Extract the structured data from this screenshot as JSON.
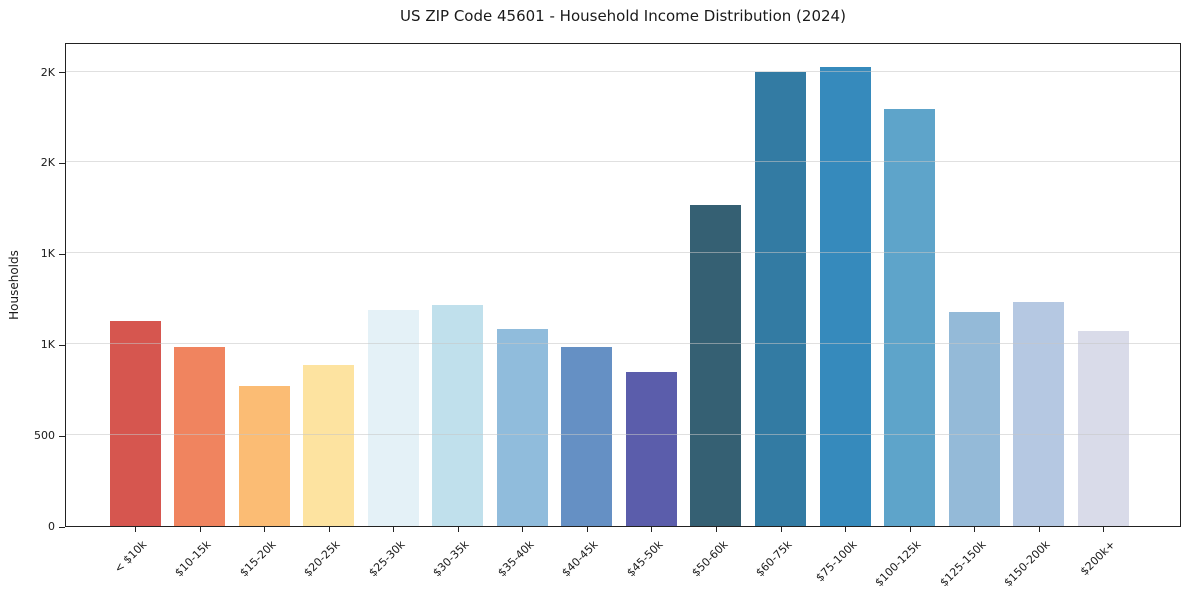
{
  "chart_data": {
    "type": "bar",
    "title": "US ZIP Code 45601 - Household Income Distribution (2024)",
    "xlabel": "",
    "ylabel": "Households",
    "categories": [
      "< $10k",
      "$10-15k",
      "$15-20k",
      "$20-25k",
      "$25-30k",
      "$30-35k",
      "$35-40k",
      "$40-45k",
      "$45-50k",
      "$50-60k",
      "$60-75k",
      "$75-100k",
      "$100-125k",
      "$125-150k",
      "$150-200k",
      "$200k+"
    ],
    "values": [
      1130,
      985,
      770,
      885,
      1190,
      1215,
      1085,
      985,
      850,
      1765,
      2500,
      2525,
      2295,
      1175,
      1230,
      1075
    ],
    "bar_colors": [
      "#d6564f",
      "#f0845f",
      "#fbbc74",
      "#fde3a0",
      "#e4f1f7",
      "#c0e0ec",
      "#90bcdc",
      "#6590c4",
      "#5b5dab",
      "#356073",
      "#337ba3",
      "#368abc",
      "#5ea4ca",
      "#94bad8",
      "#b5c8e2",
      "#d9dbe9"
    ],
    "ylim": [
      0,
      2662
    ],
    "yticks": [
      {
        "value": 0,
        "label": "0"
      },
      {
        "value": 500,
        "label": "500"
      },
      {
        "value": 1000,
        "label": "1K"
      },
      {
        "value": 1500,
        "label": "1K"
      },
      {
        "value": 2000,
        "label": "2K"
      },
      {
        "value": 2500,
        "label": "2K"
      }
    ],
    "grid": true,
    "legend_position": "none"
  }
}
